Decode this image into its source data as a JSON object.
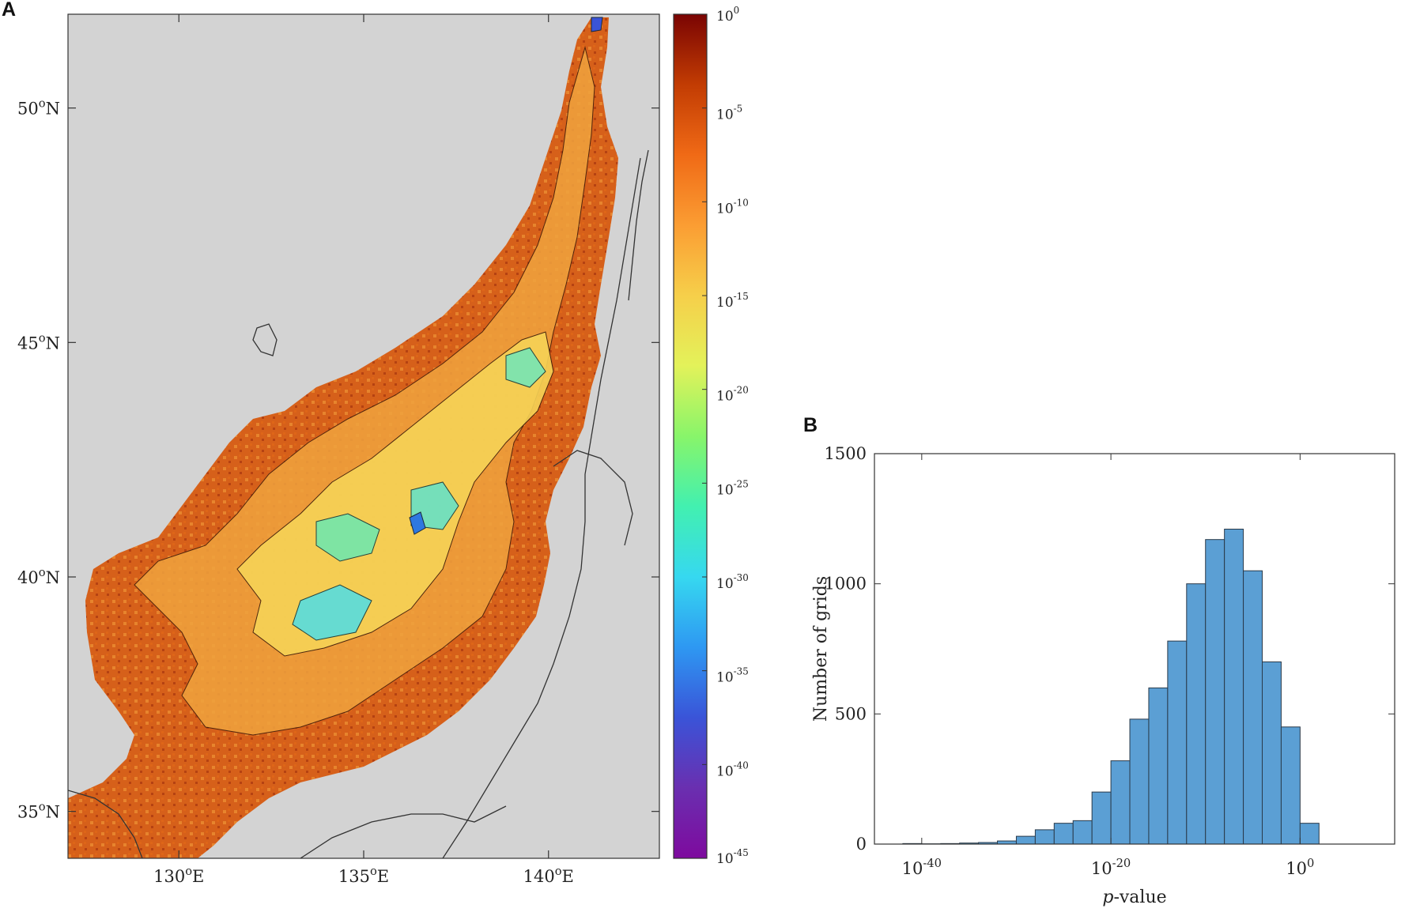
{
  "panels": {
    "a": {
      "label": "A"
    },
    "b": {
      "label": "B"
    }
  },
  "chart_data": [
    {
      "type": "heatmap",
      "panel": "A",
      "description_type": "map",
      "xaxis": {
        "ticks": [
          130,
          135,
          140
        ],
        "tick_labels": [
          {
            "base": "130",
            "sup": "o",
            "suffix": "E"
          },
          {
            "base": "135",
            "sup": "o",
            "suffix": "E"
          },
          {
            "base": "140",
            "sup": "o",
            "suffix": "E"
          }
        ],
        "xlim": [
          127.0,
          143.0
        ]
      },
      "yaxis": {
        "ticks": [
          35,
          40,
          45,
          50
        ],
        "tick_labels": [
          {
            "base": "35",
            "sup": "o",
            "suffix": "N"
          },
          {
            "base": "40",
            "sup": "o",
            "suffix": "N"
          },
          {
            "base": "45",
            "sup": "o",
            "suffix": "N"
          },
          {
            "base": "50",
            "sup": "o",
            "suffix": "N"
          }
        ],
        "ylim": [
          34.0,
          52.0
        ]
      },
      "colorbar": {
        "scale": "log",
        "range_exponents": [
          -45,
          0
        ],
        "tick_exponents": [
          0,
          -5,
          -10,
          -15,
          -20,
          -25,
          -30,
          -35,
          -40,
          -45
        ],
        "tick_base": "10",
        "colormap": [
          "#7a0403",
          "#c23c03",
          "#f06a16",
          "#fb9d33",
          "#f6cf4a",
          "#e3f25a",
          "#88f56a",
          "#42f0b0",
          "#36d8f0",
          "#2e98f2",
          "#3a54d8",
          "#6a2fb0",
          "#7e0a9e"
        ]
      },
      "land_color": "#d3d3d3",
      "sea_base_color": "#d6601a"
    },
    {
      "type": "bar",
      "panel": "B",
      "xlabel_italic": "p",
      "xlabel_rest": "-value",
      "ylabel": "Number of grids",
      "xscale": "log",
      "xlim_exponents": [
        -45,
        10
      ],
      "ylim": [
        0,
        1500
      ],
      "yticks": [
        0,
        500,
        1000,
        1500
      ],
      "xtick_exponents": [
        -40,
        -20,
        0
      ],
      "xtick_base": "10",
      "bar_color": "#5b9fd4",
      "bin_width_exponent": 2,
      "bins_left_exponents": [
        -42,
        -40,
        -38,
        -36,
        -34,
        -32,
        -30,
        -28,
        -26,
        -24,
        -22,
        -20,
        -18,
        -16,
        -14,
        -12,
        -10,
        -8,
        -6,
        -4,
        -2,
        0
      ],
      "counts": [
        2,
        1,
        2,
        4,
        6,
        12,
        30,
        55,
        80,
        90,
        200,
        320,
        480,
        600,
        780,
        1000,
        1170,
        1210,
        1050,
        700,
        450,
        80
      ]
    }
  ]
}
